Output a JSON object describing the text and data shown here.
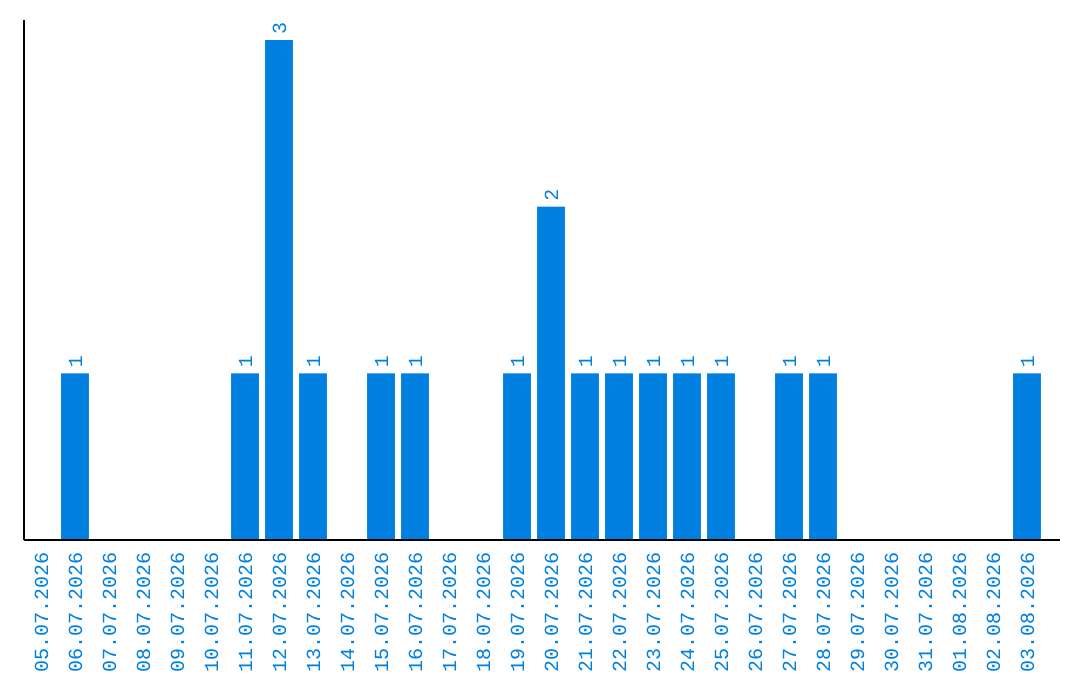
{
  "chart_data": {
    "type": "bar",
    "categories": [
      "05.07.2026",
      "06.07.2026",
      "07.07.2026",
      "08.07.2026",
      "09.07.2026",
      "10.07.2026",
      "11.07.2026",
      "12.07.2026",
      "13.07.2026",
      "14.07.2026",
      "15.07.2026",
      "16.07.2026",
      "17.07.2026",
      "18.07.2026",
      "19.07.2026",
      "20.07.2026",
      "21.07.2026",
      "22.07.2026",
      "23.07.2026",
      "24.07.2026",
      "25.07.2026",
      "26.07.2026",
      "27.07.2026",
      "28.07.2026",
      "29.07.2026",
      "30.07.2026",
      "31.07.2026",
      "01.08.2026",
      "02.08.2026",
      "03.08.2026"
    ],
    "values": [
      0,
      1,
      0,
      0,
      0,
      0,
      1,
      3,
      1,
      0,
      1,
      1,
      0,
      0,
      1,
      2,
      1,
      1,
      1,
      1,
      1,
      0,
      1,
      1,
      0,
      0,
      0,
      0,
      0,
      1
    ],
    "value_labels": [
      null,
      "1",
      null,
      null,
      null,
      null,
      "1",
      "3",
      "1",
      null,
      "1",
      "1",
      null,
      null,
      "1",
      "2",
      "1",
      "1",
      "1",
      "1",
      "1",
      null,
      "1",
      "1",
      null,
      null,
      null,
      null,
      null,
      "1"
    ],
    "color": "#0080e0"
  }
}
